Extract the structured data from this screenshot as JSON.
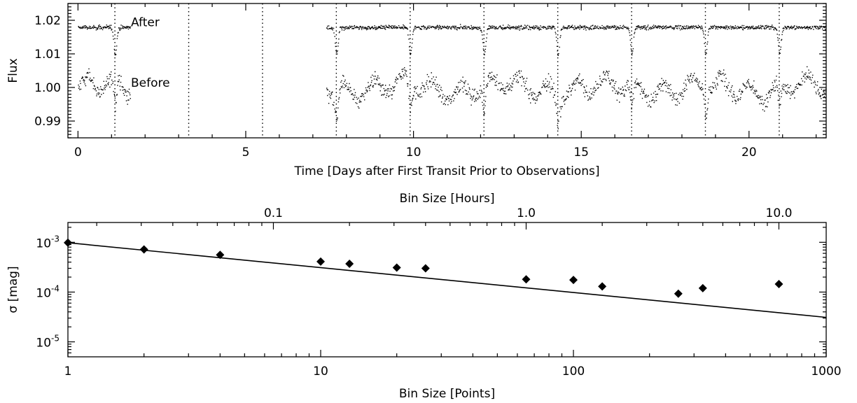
{
  "chart_data": [
    {
      "type": "scatter",
      "panel": "top",
      "xlabel": "Time [Days after First Transit Prior to Observations]",
      "ylabel": "Flux",
      "xlim": [
        -0.3,
        22.3
      ],
      "ylim": [
        0.985,
        1.025
      ],
      "x_ticks": [
        {
          "value": 0,
          "label": "0"
        },
        {
          "value": 5,
          "label": "5"
        },
        {
          "value": 10,
          "label": "10"
        },
        {
          "value": 15,
          "label": "15"
        },
        {
          "value": 20,
          "label": "20"
        }
      ],
      "y_ticks": [
        {
          "value": 0.99,
          "label": "0.99"
        },
        {
          "value": 1.0,
          "label": "1.00"
        },
        {
          "value": 1.01,
          "label": "1.01"
        },
        {
          "value": 1.02,
          "label": "1.02"
        }
      ],
      "annotations": [
        {
          "text": "After",
          "x": 3.2,
          "y": 1.0195
        },
        {
          "text": "Before",
          "x": 3.2,
          "y": 1.0015
        }
      ],
      "transit_lines_days": [
        1.1,
        3.3,
        5.5,
        7.7,
        9.9,
        12.1,
        14.3,
        16.5,
        18.7,
        20.9
      ],
      "observed_segments_days": [
        [
          0.0,
          1.55
        ],
        [
          7.4,
          22.3
        ]
      ],
      "series": [
        {
          "baseline": 1.018,
          "scatter": 0.0006,
          "transit_depth": 0.008
        },
        {
          "baseline": 1.0,
          "scatter": 0.0022,
          "transit_depth": 0.008
        }
      ]
    },
    {
      "type": "scatter",
      "panel": "bottom",
      "xlabel": "Bin Size [Points]",
      "ylabel": "σ [mag]",
      "top_xlabel": "Bin Size [Hours]",
      "xscale": "log",
      "yscale": "log",
      "xlim": [
        1,
        1000
      ],
      "ylim": [
        5e-06,
        0.0025
      ],
      "x_ticks": [
        {
          "value": 1,
          "label": "1"
        },
        {
          "value": 10,
          "label": "10"
        },
        {
          "value": 100,
          "label": "100"
        },
        {
          "value": 1000,
          "label": "1000"
        }
      ],
      "y_ticks": [
        {
          "value": 0.001,
          "base": "10",
          "exp": "-3"
        },
        {
          "value": 0.0001,
          "base": "10",
          "exp": "-4"
        },
        {
          "value": 1e-05,
          "base": "10",
          "exp": "-5"
        }
      ],
      "top_ticks_hours": [
        {
          "value": 0.1,
          "label": "0.1"
        },
        {
          "value": 1.0,
          "label": "1.0"
        },
        {
          "value": 10.0,
          "label": "10.0"
        }
      ],
      "x": [
        1,
        2,
        4,
        10,
        13,
        20,
        26,
        65,
        100,
        130,
        260,
        325,
        650
      ],
      "y": [
        0.00098,
        0.00072,
        0.00056,
        0.00041,
        0.00037,
        0.00031,
        0.0003,
        0.00018,
        0.000175,
        0.00013,
        9.3e-05,
        0.00012,
        0.000145
      ],
      "fit_line": {
        "x": [
          1,
          1000
        ],
        "y": [
          0.00098,
          3.1e-05
        ]
      }
    }
  ]
}
